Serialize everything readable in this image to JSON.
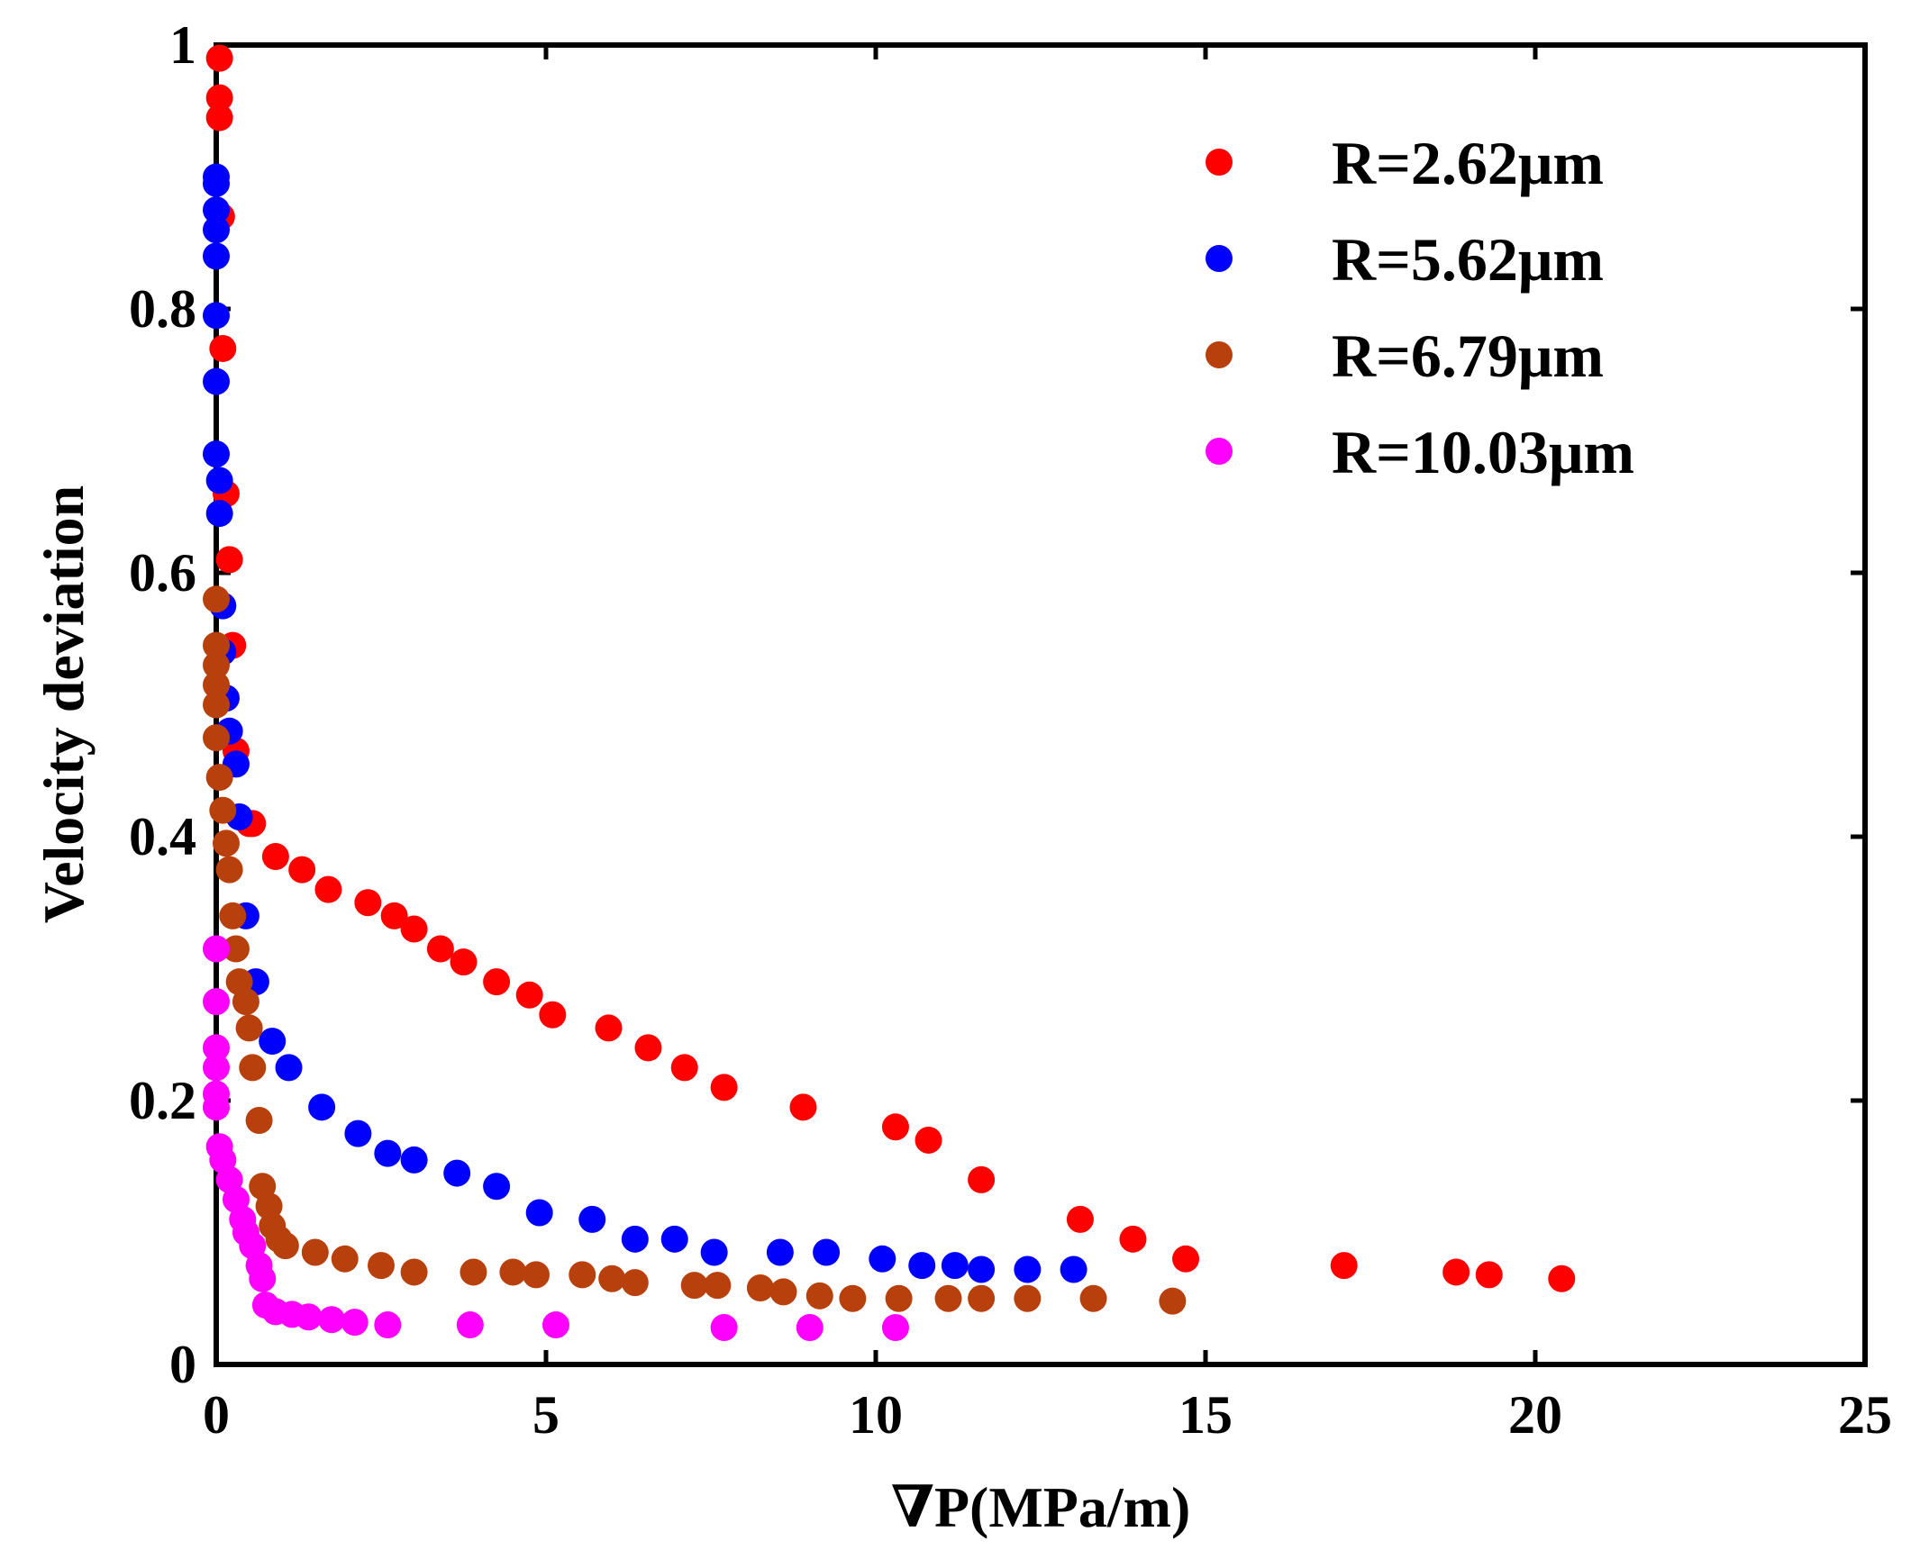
{
  "chart_data": {
    "type": "scatter",
    "title": "",
    "xlabel": "∇P(MPa/m)",
    "ylabel": "Velocity deviation",
    "xlim": [
      0,
      25
    ],
    "ylim": [
      0,
      1
    ],
    "xticks": [
      0,
      5,
      10,
      15,
      20,
      25
    ],
    "yticks": [
      0,
      0.2,
      0.4,
      0.6,
      0.8,
      1
    ],
    "xtick_labels": [
      "0",
      "5",
      "10",
      "15",
      "20",
      "25"
    ],
    "ytick_labels": [
      "0",
      "0.2",
      "0.4",
      "0.6",
      "0.8",
      "1"
    ],
    "grid": false,
    "legend_position": "top-right",
    "series": [
      {
        "name": "R=2.62μm",
        "color": "#ff0000",
        "x": [
          0.05,
          0.05,
          0.05,
          0.08,
          0.1,
          0.15,
          0.2,
          0.25,
          0.3,
          0.5,
          0.55,
          0.9,
          1.3,
          1.7,
          2.3,
          2.7,
          3.0,
          3.4,
          3.75,
          4.25,
          4.75,
          5.1,
          5.95,
          6.55,
          7.1,
          7.7,
          8.9,
          10.3,
          10.8,
          11.6,
          13.1,
          13.9,
          14.7,
          17.1,
          18.8,
          19.3,
          20.4
        ],
        "y": [
          0.99,
          0.96,
          0.945,
          0.87,
          0.77,
          0.66,
          0.61,
          0.545,
          0.465,
          0.41,
          0.41,
          0.385,
          0.375,
          0.36,
          0.35,
          0.34,
          0.33,
          0.315,
          0.305,
          0.29,
          0.28,
          0.265,
          0.255,
          0.24,
          0.225,
          0.21,
          0.195,
          0.18,
          0.17,
          0.14,
          0.11,
          0.095,
          0.08,
          0.075,
          0.07,
          0.068,
          0.065
        ]
      },
      {
        "name": "R=5.62μm",
        "color": "#0000ff",
        "x": [
          0,
          0,
          0,
          0,
          0,
          0,
          0,
          0,
          0.05,
          0.05,
          0.1,
          0.1,
          0.15,
          0.2,
          0.3,
          0.35,
          0.45,
          0.6,
          0.85,
          1.1,
          1.6,
          2.15,
          2.6,
          3.0,
          3.65,
          4.25,
          4.9,
          5.7,
          6.35,
          6.95,
          7.55,
          8.55,
          9.25,
          10.1,
          10.7,
          11.2,
          11.6,
          12.3,
          13.0
        ],
        "y": [
          0.9,
          0.895,
          0.875,
          0.86,
          0.84,
          0.795,
          0.745,
          0.69,
          0.67,
          0.645,
          0.575,
          0.54,
          0.505,
          0.48,
          0.455,
          0.415,
          0.34,
          0.29,
          0.245,
          0.225,
          0.195,
          0.175,
          0.16,
          0.155,
          0.145,
          0.135,
          0.115,
          0.11,
          0.095,
          0.095,
          0.085,
          0.085,
          0.085,
          0.08,
          0.075,
          0.075,
          0.072,
          0.072,
          0.072
        ]
      },
      {
        "name": "R=6.79μm",
        "color": "#b8400c",
        "x": [
          0,
          0,
          0,
          0,
          0,
          0,
          0.05,
          0.1,
          0.15,
          0.2,
          0.25,
          0.3,
          0.35,
          0.45,
          0.5,
          0.55,
          0.65,
          0.7,
          0.8,
          0.85,
          0.95,
          1.05,
          1.5,
          1.95,
          2.5,
          3.0,
          3.9,
          4.5,
          4.85,
          5.55,
          6.0,
          6.35,
          7.25,
          7.6,
          8.25,
          8.6,
          9.15,
          9.65,
          10.35,
          11.1,
          11.6,
          12.3,
          13.3,
          14.5
        ],
        "y": [
          0.58,
          0.545,
          0.53,
          0.515,
          0.5,
          0.475,
          0.445,
          0.42,
          0.395,
          0.375,
          0.34,
          0.315,
          0.29,
          0.275,
          0.255,
          0.225,
          0.185,
          0.135,
          0.12,
          0.105,
          0.095,
          0.09,
          0.085,
          0.08,
          0.075,
          0.07,
          0.07,
          0.07,
          0.068,
          0.068,
          0.065,
          0.062,
          0.06,
          0.06,
          0.058,
          0.055,
          0.052,
          0.05,
          0.05,
          0.05,
          0.05,
          0.05,
          0.05,
          0.048
        ]
      },
      {
        "name": "R=10.03μm",
        "color": "#ff00ff",
        "x": [
          0,
          0,
          0,
          0,
          0,
          0,
          0.05,
          0.1,
          0.2,
          0.3,
          0.4,
          0.45,
          0.55,
          0.65,
          0.7,
          0.75,
          0.9,
          1.15,
          1.4,
          1.75,
          2.1,
          2.6,
          3.85,
          5.15,
          7.7,
          9.0,
          10.3
        ],
        "y": [
          0.315,
          0.275,
          0.24,
          0.225,
          0.205,
          0.195,
          0.165,
          0.155,
          0.14,
          0.125,
          0.11,
          0.1,
          0.09,
          0.075,
          0.065,
          0.045,
          0.04,
          0.038,
          0.036,
          0.034,
          0.032,
          0.03,
          0.03,
          0.03,
          0.028,
          0.028,
          0.028
        ]
      }
    ]
  }
}
